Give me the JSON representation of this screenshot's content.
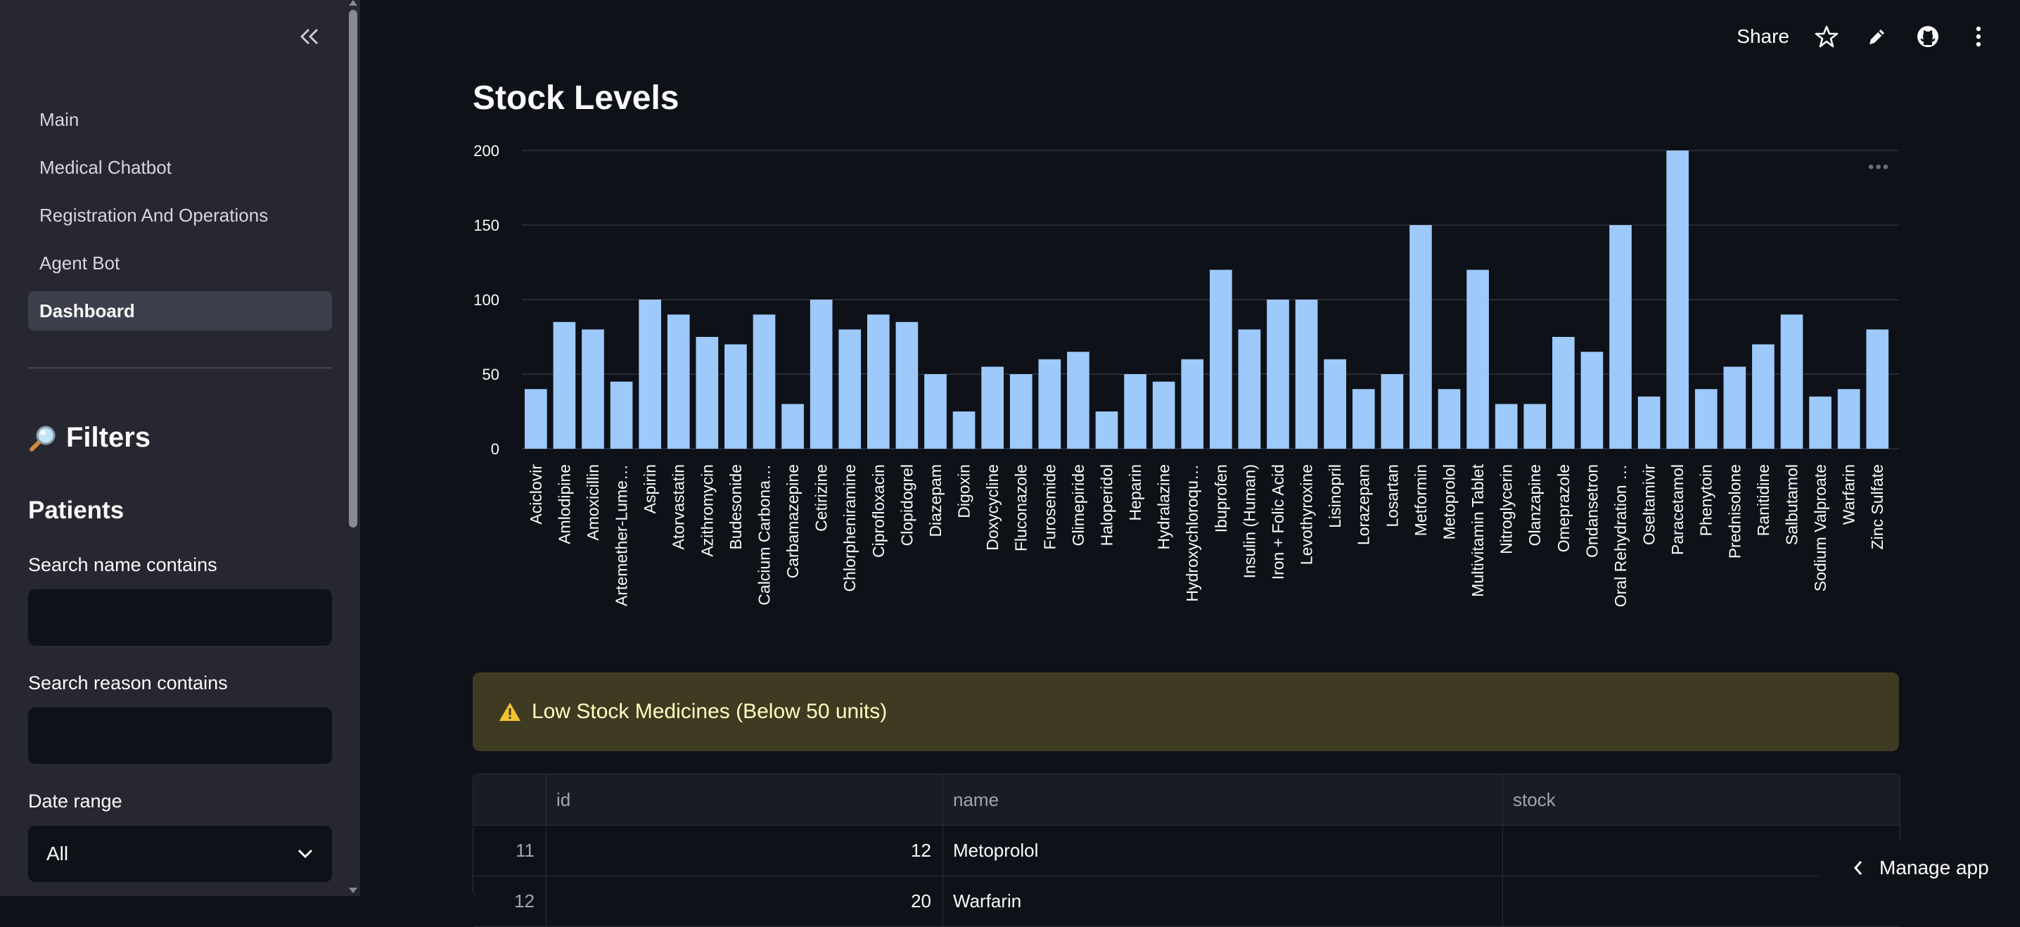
{
  "sidebar": {
    "nav": [
      {
        "label": "Main",
        "active": false
      },
      {
        "label": "Medical Chatbot",
        "active": false
      },
      {
        "label": "Registration And Operations",
        "active": false
      },
      {
        "label": "Agent Bot",
        "active": false
      },
      {
        "label": "Dashboard",
        "active": true
      }
    ],
    "filters_title": "Filters",
    "patients_title": "Patients",
    "search_name_label": "Search name contains",
    "search_name_value": "",
    "search_reason_label": "Search reason contains",
    "search_reason_value": "",
    "date_range_label": "Date range",
    "date_range_value": "All"
  },
  "header": {
    "share_label": "Share",
    "icons": [
      "star-icon",
      "pencil-icon",
      "github-icon",
      "more-vertical-icon"
    ]
  },
  "main": {
    "title": "Stock Levels",
    "warning_text": "Low Stock Medicines (Below 50 units)",
    "table": {
      "columns": [
        "",
        "id",
        "name",
        "stock"
      ],
      "rows": [
        {
          "index": "11",
          "id": "12",
          "name": "Metoprolol",
          "stock": ""
        },
        {
          "index": "12",
          "id": "20",
          "name": "Warfarin",
          "stock": ""
        }
      ]
    },
    "manage_app_label": "Manage app"
  },
  "colors": {
    "bar": "#9dc9fb",
    "background": "#0e1117",
    "sidebar": "#262730",
    "warning_bg": "#3e3b22",
    "warning_text": "#ffffc2"
  },
  "chart_data": {
    "type": "bar",
    "title": "",
    "xlabel": "",
    "ylabel": "",
    "ylim": [
      0,
      200
    ],
    "yticks": [
      0,
      50,
      100,
      150,
      200
    ],
    "grid": true,
    "categories": [
      "Aciclovir",
      "Amlodipine",
      "Amoxicillin",
      "Artemether-Lume…",
      "Aspirin",
      "Atorvastatin",
      "Azithromycin",
      "Budesonide",
      "Calcium Carbona…",
      "Carbamazepine",
      "Cetirizine",
      "Chlorpheniramine",
      "Ciprofloxacin",
      "Clopidogrel",
      "Diazepam",
      "Digoxin",
      "Doxycycline",
      "Fluconazole",
      "Furosemide",
      "Glimepiride",
      "Haloperidol",
      "Heparin",
      "Hydralazine",
      "Hydroxychloroqu…",
      "Ibuprofen",
      "Insulin (Human)",
      "Iron + Folic Acid",
      "Levothyroxine",
      "Lisinopril",
      "Lorazepam",
      "Losartan",
      "Metformin",
      "Metoprolol",
      "Multivitamin Tablet",
      "Nitroglycerin",
      "Olanzapine",
      "Omeprazole",
      "Ondansetron",
      "Oral Rehydration …",
      "Oseltamivir",
      "Paracetamol",
      "Phenytoin",
      "Prednisolone",
      "Ranitidine",
      "Salbutamol",
      "Sodium Valproate",
      "Warfarin",
      "Zinc Sulfate"
    ],
    "values": [
      40,
      85,
      80,
      45,
      100,
      90,
      75,
      70,
      90,
      30,
      100,
      80,
      90,
      85,
      50,
      25,
      55,
      50,
      60,
      65,
      25,
      50,
      45,
      60,
      120,
      80,
      100,
      100,
      60,
      40,
      50,
      150,
      40,
      120,
      30,
      30,
      75,
      65,
      150,
      35,
      200,
      40,
      55,
      70,
      90,
      35,
      40,
      80
    ]
  }
}
